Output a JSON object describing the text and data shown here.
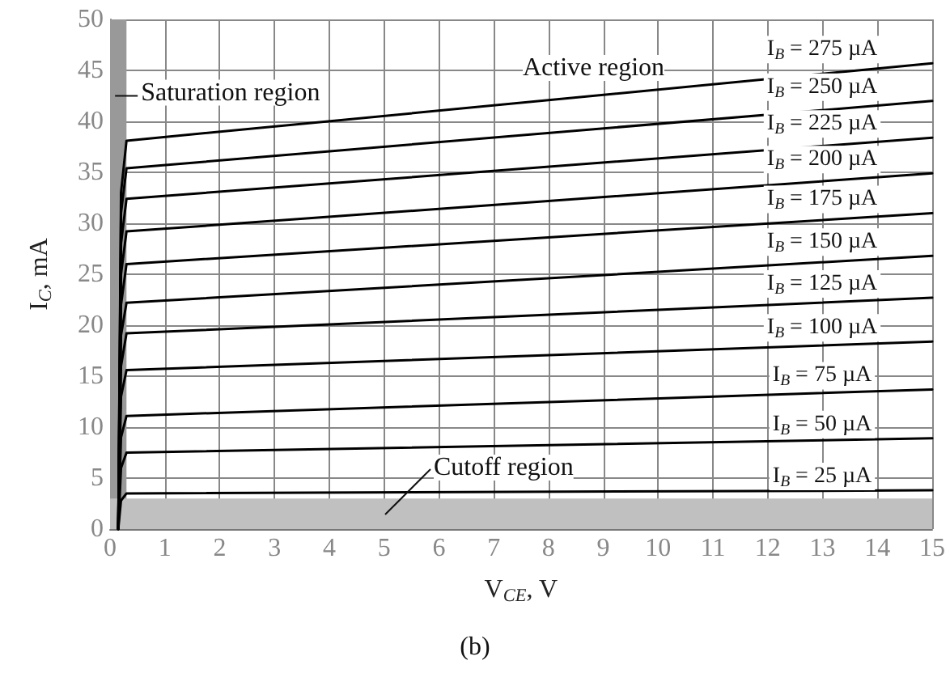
{
  "chart_data": {
    "type": "line",
    "xlabel": "V$_{CE}$, V",
    "ylabel": "I$_{C}$, mA",
    "xlim": [
      0,
      15
    ],
    "xticks": [
      0,
      1,
      2,
      3,
      4,
      5,
      6,
      7,
      8,
      9,
      10,
      11,
      12,
      13,
      14,
      15
    ],
    "ylim": [
      0,
      50
    ],
    "yticks": [
      0,
      5,
      10,
      15,
      20,
      25,
      30,
      35,
      40,
      45,
      50
    ],
    "grid": true,
    "legend": false,
    "marker": "none",
    "line_style": "solid",
    "series": [
      {
        "name": "I$_{B}$ = 275 µA",
        "color": "#000000",
        "x": [
          0.15,
          0.2,
          0.3,
          15
        ],
        "values": [
          0,
          33,
          38.1,
          45.7
        ]
      },
      {
        "name": "I$_{B}$ = 250 µA",
        "color": "#000000",
        "x": [
          0.15,
          0.2,
          0.3,
          15
        ],
        "values": [
          0,
          31,
          35.4,
          42
        ]
      },
      {
        "name": "I$_{B}$ = 225 µA",
        "color": "#000000",
        "x": [
          0.15,
          0.2,
          0.3,
          15
        ],
        "values": [
          0,
          28,
          32.4,
          38.4
        ]
      },
      {
        "name": "I$_{B}$ = 200 µA",
        "color": "#000000",
        "x": [
          0.15,
          0.2,
          0.3,
          15
        ],
        "values": [
          0,
          25,
          29.2,
          34.9
        ]
      },
      {
        "name": "I$_{B}$ = 175 µA",
        "color": "#000000",
        "x": [
          0.15,
          0.2,
          0.3,
          15
        ],
        "values": [
          0,
          22,
          26,
          31
        ]
      },
      {
        "name": "I$_{B}$ = 150 µA",
        "color": "#000000",
        "x": [
          0.15,
          0.2,
          0.3,
          15
        ],
        "values": [
          0,
          19,
          22.2,
          26.8
        ]
      },
      {
        "name": "I$_{B}$ = 125 µA",
        "color": "#000000",
        "x": [
          0.15,
          0.2,
          0.3,
          15
        ],
        "values": [
          0,
          16,
          19.2,
          22.7
        ]
      },
      {
        "name": "I$_{B}$ = 100 µA",
        "color": "#000000",
        "x": [
          0.15,
          0.2,
          0.3,
          15
        ],
        "values": [
          0,
          13,
          15.6,
          18.4
        ]
      },
      {
        "name": "I$_{B}$ = 75 µA",
        "color": "#000000",
        "x": [
          0.15,
          0.2,
          0.3,
          15
        ],
        "values": [
          0,
          9,
          11.1,
          13.7
        ]
      },
      {
        "name": "I$_{B}$ = 50 µA",
        "color": "#000000",
        "x": [
          0.15,
          0.2,
          0.3,
          15
        ],
        "values": [
          0,
          6,
          7.5,
          8.9
        ]
      },
      {
        "name": "I$_{B}$ = 25 µA",
        "color": "#000000",
        "x": [
          0.15,
          0.2,
          0.3,
          15
        ],
        "values": [
          0,
          2.8,
          3.5,
          3.8
        ]
      }
    ],
    "bands": [
      {
        "axis": "x",
        "from": 0,
        "to": 0.3,
        "color": "#999999"
      },
      {
        "axis": "y",
        "from": 0,
        "to": 3,
        "color": "#c0c0c0"
      }
    ],
    "annotations": [
      {
        "text": "Saturation region",
        "x": 0.15,
        "y": 42.5
      },
      "Active region",
      "Cutoff region",
      "(b)"
    ]
  }
}
